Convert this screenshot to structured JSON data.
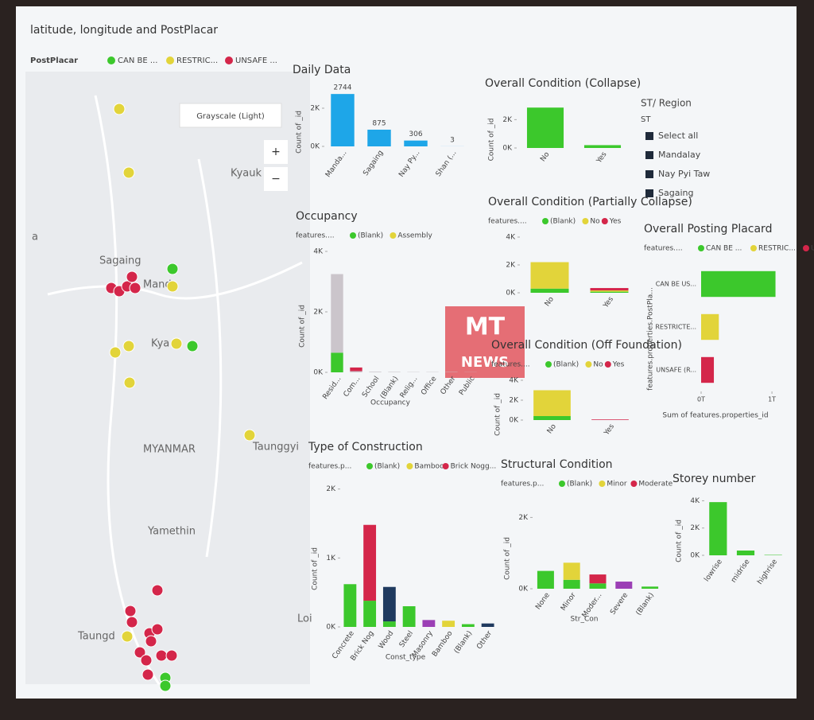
{
  "map": {
    "title": "latitude, longitude and PostPlacar",
    "legend_title": "PostPlacar",
    "legend": [
      "CAN BE ...",
      "RESTRIC...",
      "UNSAFE ..."
    ],
    "style_button": "Grayscale (Light)",
    "places": [
      "Kyauk",
      "Sagaing",
      "Manda",
      "Kya",
      "MYANMAR",
      "Taunggyi",
      "Yamethin",
      "Taungd",
      "Loi",
      "a"
    ]
  },
  "slicer": {
    "title": "ST/ Region",
    "field": "ST",
    "items": [
      "Select all",
      "Mandalay",
      "Nay Pyi Taw",
      "Sagaing"
    ]
  },
  "watermark": {
    "logo": "MT",
    "text": "NEWS"
  },
  "chart_data": [
    {
      "type": "bar",
      "title": "Daily Data",
      "ylabel": "Count of _id",
      "categories": [
        "Manda...",
        "Sagaing",
        "Nay Py...",
        "Shan (..."
      ],
      "values": [
        2744,
        875,
        306,
        3
      ],
      "color": "#1ea6e8",
      "ylim": [
        0,
        3000
      ],
      "yticks": [
        {
          "value": 0,
          "label": "0K"
        },
        {
          "value": 2000,
          "label": "2K"
        }
      ],
      "data_labels": true
    },
    {
      "type": "bar",
      "title": "Overall Condition (Collapse)",
      "ylabel": "Count of _id",
      "categories": [
        "No",
        "Yes"
      ],
      "values": [
        2850,
        200
      ],
      "color": "#3cc82c",
      "ylim": [
        0,
        3200
      ],
      "yticks": [
        {
          "value": 0,
          "label": "0K"
        },
        {
          "value": 2000,
          "label": "2K"
        }
      ]
    },
    {
      "type": "bar",
      "title": "Occupancy",
      "legend_title": "features....",
      "ylabel": "Count of _id",
      "xlabel": "Occupancy",
      "categories": [
        "Resid...",
        "Com...",
        "School",
        "(Blank)",
        "Relig...",
        "Office",
        "Other",
        "Public"
      ],
      "series": [
        {
          "name": "(Blank)",
          "color": "#3cc82c",
          "values": [
            650,
            null,
            null,
            null,
            null,
            null,
            null,
            null
          ]
        },
        {
          "name": "Assembly",
          "color": "#e2d43a",
          "values": [
            null,
            null,
            null,
            null,
            null,
            null,
            null,
            null
          ]
        },
        {
          "color": "#cbc5cb",
          "values": [
            2600,
            40,
            20,
            15,
            10,
            10,
            10,
            5
          ]
        },
        {
          "color": "#d4264a",
          "values": [
            null,
            120,
            null,
            null,
            null,
            null,
            null,
            null
          ]
        }
      ],
      "ylim": [
        0,
        4000
      ],
      "yticks": [
        {
          "value": 0,
          "label": "0K"
        },
        {
          "value": 2000,
          "label": "2K"
        },
        {
          "value": 4000,
          "label": "4K"
        }
      ]
    },
    {
      "type": "bar",
      "title": "Overall Condition (Partially Collapse)",
      "legend_title": "features....",
      "categories": [
        "No",
        "Yes"
      ],
      "series": [
        {
          "name": "(Blank)",
          "color": "#3cc82c",
          "values": [
            300,
            80
          ]
        },
        {
          "name": "No",
          "color": "#e2d43a",
          "values": [
            1900,
            90
          ]
        },
        {
          "name": "Yes",
          "color": "#d4264a",
          "values": [
            null,
            170
          ]
        }
      ],
      "ylim": [
        0,
        4000
      ],
      "yticks": [
        {
          "value": 0,
          "label": "0K"
        },
        {
          "value": 2000,
          "label": "2K"
        },
        {
          "value": 4000,
          "label": "4K"
        }
      ]
    },
    {
      "type": "bar",
      "title": "Overall Posting Placard",
      "legend_title": "features....",
      "horizontal": true,
      "ylabel": "features.properties.PostPla...",
      "xlabel": "Sum of features.properties_id",
      "categories": [
        "CAN BE US...",
        "RESTRICTE...",
        "UNSAFE (R..."
      ],
      "series": [
        {
          "name": "CAN BE ...",
          "color": "#3cc82c",
          "values": [
            1.05,
            null,
            null
          ]
        },
        {
          "name": "RESTRIC...",
          "color": "#e2d43a",
          "values": [
            null,
            0.25,
            null
          ]
        },
        {
          "name": "UNSAFE (...",
          "color": "#d4264a",
          "values": [
            null,
            null,
            0.18
          ]
        }
      ],
      "xlim": [
        0,
        1.1
      ],
      "xticks": [
        {
          "value": 0,
          "label": "0T"
        },
        {
          "value": 1,
          "label": "1T"
        }
      ]
    },
    {
      "type": "bar",
      "title": "Overall Condition (Off Foundation)",
      "legend_title": "features....",
      "ylabel": "Count of _id",
      "categories": [
        "No",
        "Yes"
      ],
      "series": [
        {
          "name": "(Blank)",
          "color": "#3cc82c",
          "values": [
            400,
            null
          ]
        },
        {
          "name": "No",
          "color": "#e2d43a",
          "values": [
            2600,
            null
          ]
        },
        {
          "name": "Yes",
          "color": "#d4264a",
          "values": [
            null,
            60
          ]
        }
      ],
      "ylim": [
        0,
        4000
      ],
      "yticks": [
        {
          "value": 0,
          "label": "0K"
        },
        {
          "value": 2000,
          "label": "2K"
        },
        {
          "value": 4000,
          "label": "4K"
        }
      ]
    },
    {
      "type": "bar",
      "title": "Type of Construction",
      "legend_title": "features.p...",
      "ylabel": "Count of _id",
      "xlabel": "Const_type",
      "categories": [
        "Concrete",
        "Brick Nog",
        "Wood",
        "Steel",
        "Masonry",
        "Bamboo",
        "(Blank)",
        "Other"
      ],
      "series": [
        {
          "name": "(Blank)",
          "color": "#3cc82c",
          "values": [
            620,
            380,
            80,
            300,
            null,
            null,
            40,
            null
          ]
        },
        {
          "name": "Bamboo",
          "color": "#e2d43a",
          "values": [
            null,
            null,
            null,
            null,
            null,
            90,
            null,
            null
          ]
        },
        {
          "name": "Brick Nogg...",
          "color": "#d4264a",
          "values": [
            null,
            1100,
            null,
            null,
            null,
            null,
            null,
            null
          ]
        },
        {
          "color": "#1f3a5f",
          "values": [
            null,
            null,
            500,
            null,
            null,
            null,
            null,
            50
          ]
        },
        {
          "color": "#9b3fb5",
          "values": [
            null,
            null,
            null,
            null,
            100,
            null,
            null,
            null
          ]
        }
      ],
      "ylim": [
        0,
        2100
      ],
      "yticks": [
        {
          "value": 0,
          "label": "0K"
        },
        {
          "value": 1000,
          "label": "1K"
        },
        {
          "value": 2000,
          "label": "2K"
        }
      ]
    },
    {
      "type": "bar",
      "title": "Structural Condition",
      "legend_title": "features.p...",
      "ylabel": "Count of _id",
      "xlabel": "Str_Con",
      "categories": [
        "None",
        "Minor",
        "Moder...",
        "Severe",
        "(Blank)"
      ],
      "series": [
        {
          "name": "(Blank)",
          "color": "#3cc82c",
          "values": [
            500,
            250,
            150,
            null,
            60
          ]
        },
        {
          "name": "Minor",
          "color": "#e2d43a",
          "values": [
            null,
            480,
            null,
            null,
            null
          ]
        },
        {
          "name": "Moderate",
          "color": "#d4264a",
          "values": [
            null,
            null,
            250,
            null,
            null
          ]
        },
        {
          "color": "#9b3fb5",
          "values": [
            null,
            null,
            null,
            200,
            null
          ]
        }
      ],
      "ylim": [
        0,
        2500
      ],
      "yticks": [
        {
          "value": 0,
          "label": "0K"
        },
        {
          "value": 2000,
          "label": "2K"
        }
      ]
    },
    {
      "type": "bar",
      "title": "Storey number",
      "ylabel": "Count of _id",
      "categories": [
        "lowrise",
        "midrise",
        "highrise"
      ],
      "values": [
        3900,
        350,
        30
      ],
      "color": "#3cc82c",
      "ylim": [
        0,
        4200
      ],
      "yticks": [
        {
          "value": 0,
          "label": "0K"
        },
        {
          "value": 2000,
          "label": "2K"
        },
        {
          "value": 4000,
          "label": "4K"
        }
      ]
    }
  ]
}
